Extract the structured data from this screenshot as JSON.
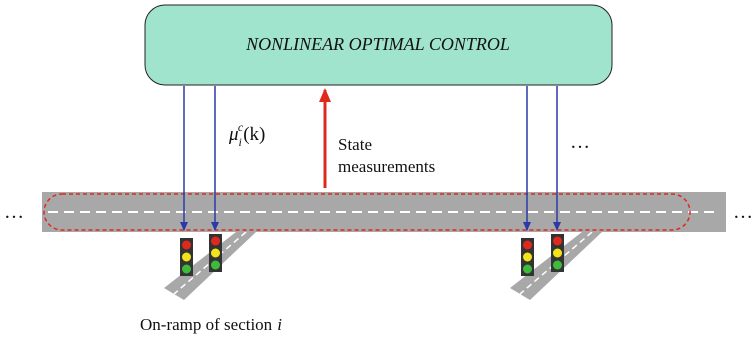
{
  "controller": {
    "title": "NONLINEAR OPTIMAL CONTROL"
  },
  "control_label": {
    "symbol": "μ",
    "subscript": "i",
    "superscript": "c",
    "argument": "(k)"
  },
  "measurement_label": {
    "lines": [
      "State",
      "measurements"
    ]
  },
  "ellipses": {
    "top": "…",
    "left": "…",
    "right": "…"
  },
  "onramp_label": {
    "text": "On-ramp of section",
    "variable": "i"
  }
}
